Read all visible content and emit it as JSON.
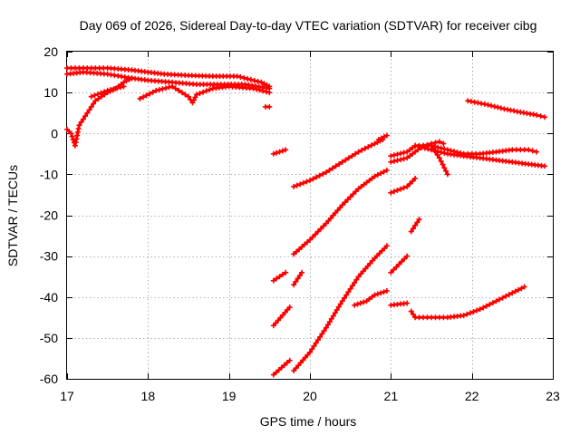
{
  "chart_data": {
    "type": "scatter",
    "title": "Day 069 of 2026, Sidereal Day-to-day VTEC variation (SDTVAR) for receiver cibg",
    "xlabel": "GPS time / hours",
    "ylabel": "SDTVAR / TECUs",
    "xlim": [
      17,
      23
    ],
    "ylim": [
      -60,
      20
    ],
    "xticks": [
      17,
      18,
      19,
      20,
      21,
      22,
      23
    ],
    "yticks": [
      -60,
      -50,
      -40,
      -30,
      -20,
      -10,
      0,
      10,
      20
    ],
    "grid": true,
    "marker": "+",
    "color": "#ff0000",
    "series": [
      {
        "name": "s1",
        "x": [
          17.0,
          17.1,
          17.3,
          17.5,
          17.8,
          18.0,
          18.2,
          18.5,
          18.8,
          19.1,
          19.4,
          19.5
        ],
        "y": [
          16.0,
          16.0,
          16.0,
          16.0,
          15.5,
          15.0,
          14.5,
          14.2,
          14.0,
          14.0,
          12.5,
          11.5
        ]
      },
      {
        "name": "s2",
        "x": [
          17.0,
          17.2,
          17.5,
          17.8,
          18.0,
          18.3,
          18.6,
          18.9,
          19.2,
          19.5
        ],
        "y": [
          14.5,
          15.0,
          14.5,
          13.5,
          13.0,
          12.5,
          12.0,
          12.0,
          12.0,
          11.0
        ]
      },
      {
        "name": "s3",
        "x": [
          17.0,
          17.05,
          17.1,
          17.15,
          17.25,
          17.35,
          17.5,
          17.6,
          17.7,
          17.8
        ],
        "y": [
          1.0,
          0.0,
          -3.0,
          2.0,
          5.0,
          8.0,
          10.0,
          11.0,
          12.5,
          13.5
        ]
      },
      {
        "name": "s4",
        "x": [
          17.3,
          17.5,
          17.7
        ],
        "y": [
          9.0,
          10.5,
          11.5
        ]
      },
      {
        "name": "s5",
        "x": [
          17.9,
          18.1,
          18.3,
          18.5,
          18.55,
          18.6,
          18.8,
          19.0,
          19.3,
          19.5
        ],
        "y": [
          8.5,
          10.5,
          11.5,
          9.0,
          7.5,
          9.5,
          11.0,
          11.5,
          11.0,
          10.0
        ]
      },
      {
        "name": "s6",
        "x": [
          19.45,
          19.5
        ],
        "y": [
          6.5,
          6.5
        ]
      },
      {
        "name": "s7",
        "x": [
          19.55,
          19.7
        ],
        "y": [
          -5.0,
          -4.0
        ]
      },
      {
        "name": "s8",
        "x": [
          19.8,
          20.0,
          20.2,
          20.4,
          20.6,
          20.8,
          20.9
        ],
        "y": [
          -13.0,
          -11.5,
          -9.5,
          -7.0,
          -4.5,
          -2.5,
          -1.5
        ]
      },
      {
        "name": "s9",
        "x": [
          20.85,
          20.95
        ],
        "y": [
          -1.5,
          -0.5
        ]
      },
      {
        "name": "s10",
        "x": [
          19.8,
          20.0,
          20.2,
          20.4,
          20.6,
          20.8,
          20.95
        ],
        "y": [
          -29.5,
          -26.0,
          -22.0,
          -17.5,
          -13.5,
          -10.5,
          -9.0
        ]
      },
      {
        "name": "s11",
        "x": [
          19.55,
          19.7
        ],
        "y": [
          -36.0,
          -34.0
        ]
      },
      {
        "name": "s12",
        "x": [
          19.55,
          19.75
        ],
        "y": [
          -47.0,
          -42.5
        ]
      },
      {
        "name": "s13",
        "x": [
          19.8,
          19.9
        ],
        "y": [
          -37.0,
          -34.0
        ]
      },
      {
        "name": "s14",
        "x": [
          19.55,
          19.75
        ],
        "y": [
          -59.0,
          -55.5
        ]
      },
      {
        "name": "s15",
        "x": [
          19.8,
          20.0,
          20.2,
          20.4,
          20.6,
          20.8,
          20.95
        ],
        "y": [
          -58.0,
          -53.5,
          -47.5,
          -41.0,
          -35.0,
          -30.5,
          -27.5
        ]
      },
      {
        "name": "s16",
        "x": [
          20.55,
          20.7,
          20.8,
          20.95
        ],
        "y": [
          -42.0,
          -41.0,
          -39.5,
          -38.5
        ]
      },
      {
        "name": "s17",
        "x": [
          21.0,
          21.2
        ],
        "y": [
          -42.0,
          -41.5
        ]
      },
      {
        "name": "s18",
        "x": [
          21.0,
          21.2
        ],
        "y": [
          -34.0,
          -30.0
        ]
      },
      {
        "name": "s19",
        "x": [
          21.25,
          21.35
        ],
        "y": [
          -24.0,
          -21.0
        ]
      },
      {
        "name": "s20",
        "x": [
          21.0,
          21.2,
          21.3
        ],
        "y": [
          -14.5,
          -13.0,
          -11.0
        ]
      },
      {
        "name": "s21",
        "x": [
          21.0,
          21.2,
          21.3,
          21.5,
          21.6,
          21.7
        ],
        "y": [
          -5.5,
          -4.5,
          -3.0,
          -3.0,
          -6.0,
          -10.0
        ]
      },
      {
        "name": "s22",
        "x": [
          21.0,
          21.2,
          21.4,
          21.5,
          21.6,
          21.65
        ],
        "y": [
          -7.0,
          -6.0,
          -3.0,
          -2.5,
          -2.0,
          -2.5
        ]
      },
      {
        "name": "s23",
        "x": [
          21.3,
          21.5,
          21.7,
          21.9,
          22.1,
          22.3,
          22.5,
          22.7,
          22.9
        ],
        "y": [
          -3.0,
          -4.0,
          -5.0,
          -5.5,
          -6.0,
          -6.5,
          -7.0,
          -7.5,
          -8.0
        ]
      },
      {
        "name": "s24",
        "x": [
          21.5,
          21.7,
          21.9,
          22.1,
          22.3,
          22.5,
          22.7,
          22.8
        ],
        "y": [
          -3.0,
          -4.0,
          -5.0,
          -5.0,
          -4.5,
          -4.0,
          -4.0,
          -4.5
        ]
      },
      {
        "name": "s25",
        "x": [
          21.95,
          22.2,
          22.4,
          22.6,
          22.8,
          22.9
        ],
        "y": [
          8.0,
          7.0,
          6.0,
          5.2,
          4.5,
          4.0
        ]
      },
      {
        "name": "s26",
        "x": [
          21.25,
          21.3,
          21.5,
          21.7,
          21.9,
          22.1,
          22.3,
          22.5,
          22.65
        ],
        "y": [
          -43.5,
          -45.0,
          -45.0,
          -45.0,
          -44.5,
          -43.0,
          -41.0,
          -39.0,
          -37.5
        ]
      }
    ]
  }
}
